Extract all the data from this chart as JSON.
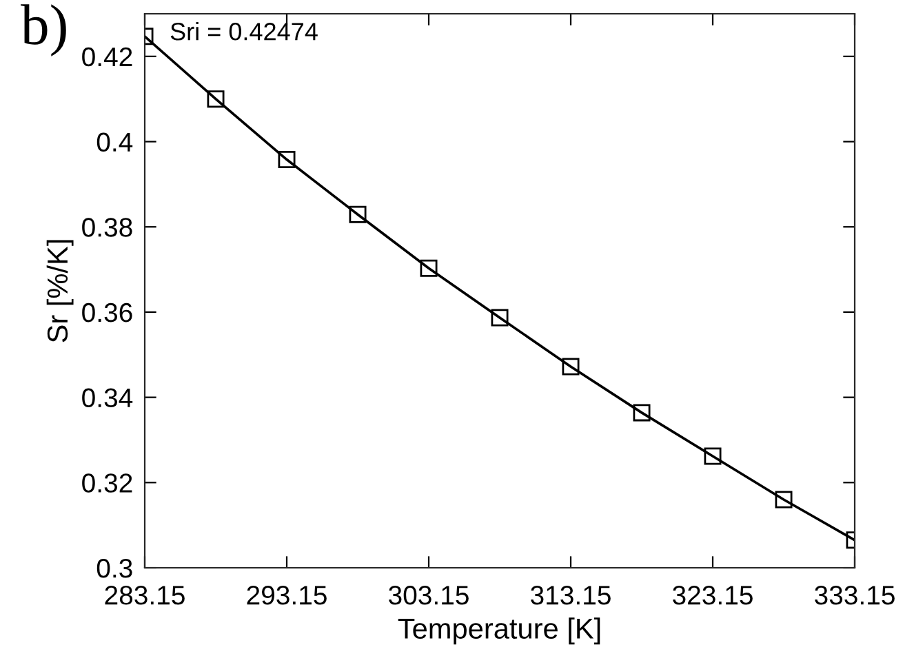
{
  "chart_data": {
    "type": "line",
    "xlabel": "Temperature [K]",
    "ylabel": "Sr [%/K]",
    "annotations": [
      "b)",
      "Sri = 0.42474"
    ],
    "x": [
      283.15,
      288.15,
      293.15,
      298.15,
      303.15,
      308.15,
      313.15,
      318.15,
      323.15,
      328.15,
      333.15
    ],
    "series": [
      {
        "color": "#000000",
        "values": [
          0.4247,
          0.41,
          0.3958,
          0.3829,
          0.3703,
          0.3587,
          0.3472,
          0.3364,
          0.3262,
          0.316,
          0.3065
        ]
      }
    ],
    "marker": "square",
    "line_style": "solid",
    "grid": false,
    "legend": false,
    "xlim": [
      283.15,
      333.15
    ],
    "ylim": [
      0.3,
      0.43
    ],
    "xticks": [
      283.15,
      293.15,
      303.15,
      313.15,
      323.15,
      333.15
    ],
    "yticks": [
      0.3,
      0.32,
      0.34,
      0.36,
      0.38,
      0.4,
      0.42
    ]
  }
}
